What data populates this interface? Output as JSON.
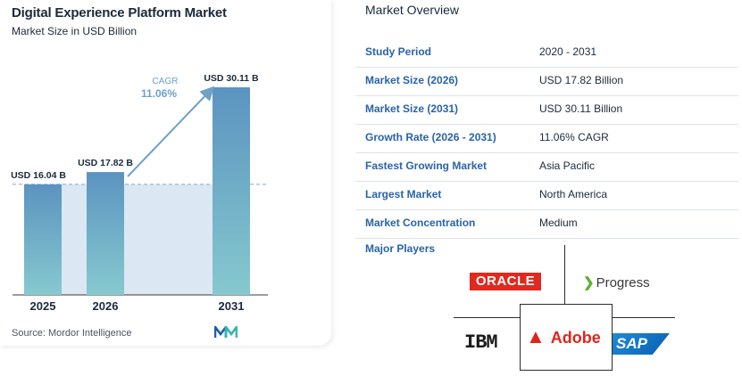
{
  "chart_data": {
    "type": "bar",
    "title": "Digital Experience Platform Market",
    "subtitle": "Market Size in USD Billion",
    "categories": [
      "2025",
      "2026",
      "2031"
    ],
    "values": [
      16.04,
      17.82,
      30.11
    ],
    "data_labels": [
      "USD 16.04 B",
      "USD 17.82 B",
      "USD 30.11 B"
    ],
    "annotation": {
      "label": "CAGR",
      "value": "11.06%"
    },
    "reference_line": 16.04,
    "ylim": [
      0,
      32
    ],
    "grid": false,
    "source": "Source:  Mordor Intelligence"
  },
  "overview": {
    "title": "Market Overview",
    "rows": [
      {
        "key": "Study Period",
        "value": "2020 - 2031"
      },
      {
        "key": "Market Size (2026)",
        "value": "USD 17.82 Billion"
      },
      {
        "key": "Market Size (2031)",
        "value": "USD 30.11 Billion"
      },
      {
        "key": "Growth Rate (2026 - 2031)",
        "value": "11.06% CAGR"
      },
      {
        "key": "Fastest Growing Market",
        "value": "Asia Pacific"
      },
      {
        "key": "Largest Market",
        "value": "North America"
      },
      {
        "key": "Market Concentration",
        "value": "Medium"
      }
    ],
    "players_label": "Major Players",
    "players": [
      "ORACLE",
      "Progress",
      "IBM",
      "Adobe",
      "SAP"
    ]
  },
  "colors": {
    "bar_top": "#5b93bf",
    "bar_bottom": "#86c9cf",
    "shade": "#dbe7f2",
    "arrow": "#6ea0c8",
    "accent": "#2a63a8"
  }
}
